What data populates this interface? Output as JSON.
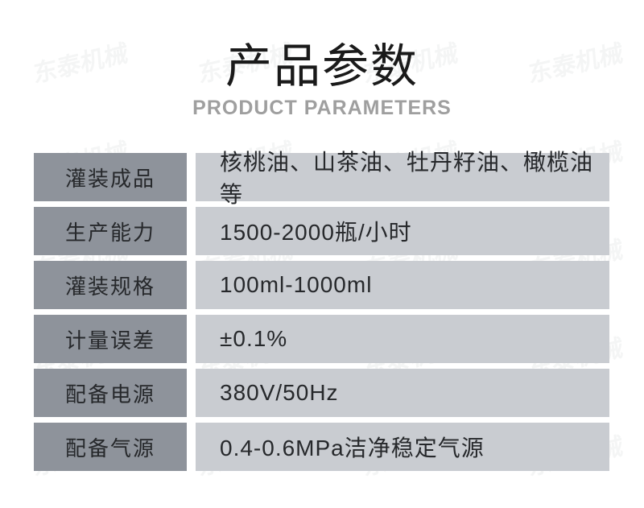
{
  "page": {
    "background_color": "#ffffff"
  },
  "watermark": {
    "text": "东泰机械",
    "color": "rgba(60,65,75,0.055)"
  },
  "header": {
    "title": "产品参数",
    "subtitle": "PRODUCT PARAMETERS",
    "title_color": "#1a1a1a",
    "subtitle_color": "#9f9f9f"
  },
  "table": {
    "label_bg": "#8e939b",
    "value_bg": "#c9ccd1",
    "text_color": "#26282b",
    "rows": [
      {
        "label": "灌装成品",
        "value": "核桃油、山茶油、牡丹籽油、橄榄油等"
      },
      {
        "label": "生产能力",
        "value": "1500-2000瓶/小时"
      },
      {
        "label": "灌装规格",
        "value": "100ml-1000ml"
      },
      {
        "label": "计量误差",
        "value": "±0.1%"
      },
      {
        "label": "配备电源",
        "value": "380V/50Hz"
      },
      {
        "label": "配备气源",
        "value": "0.4-0.6MPa洁净稳定气源"
      }
    ]
  }
}
